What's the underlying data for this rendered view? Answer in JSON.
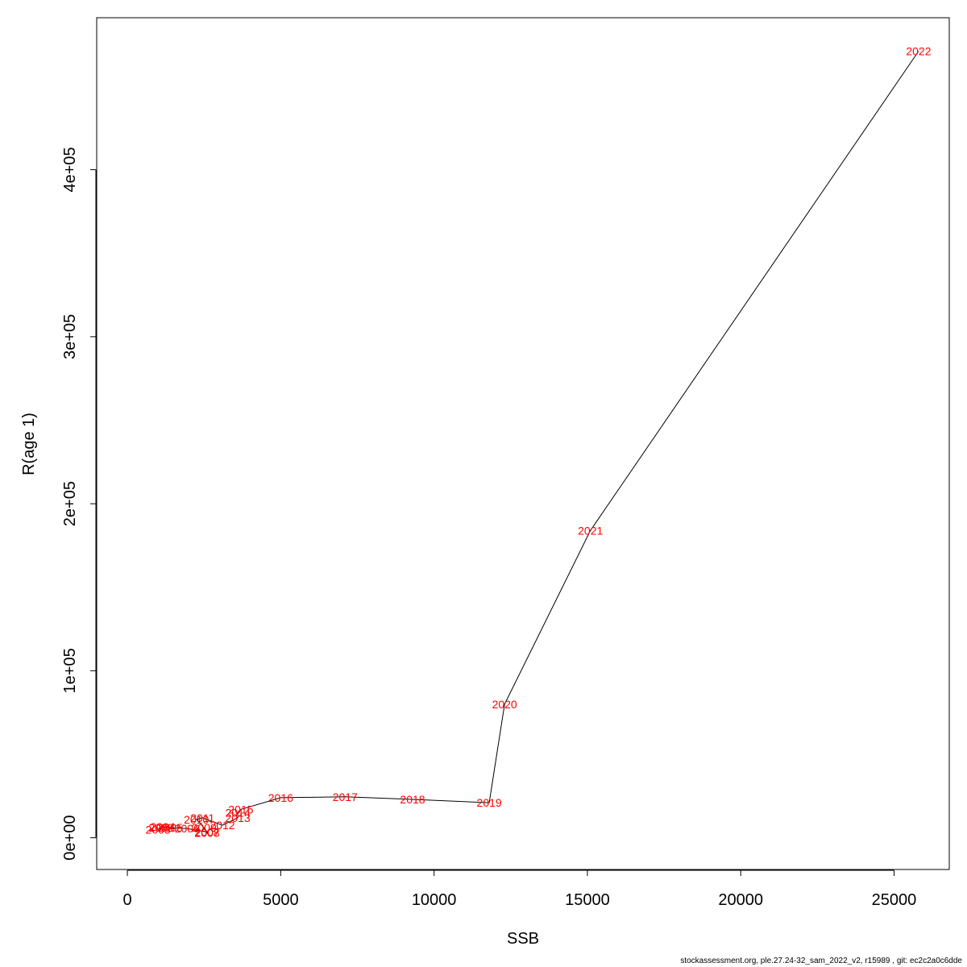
{
  "chart_data": {
    "type": "line",
    "xlabel": "SSB",
    "ylabel": "R(age 1)",
    "xlim": [
      -1000,
      26800
    ],
    "ylim": [
      -19000,
      491000
    ],
    "x_ticks": [
      0,
      5000,
      10000,
      15000,
      20000,
      25000
    ],
    "x_tick_labels": [
      "0",
      "5000",
      "10000",
      "15000",
      "20000",
      "25000"
    ],
    "y_ticks": [
      0,
      100000,
      200000,
      300000,
      400000
    ],
    "y_tick_labels": [
      "0e+00",
      "1e+05",
      "2e+05",
      "3e+05",
      "4e+05"
    ],
    "grid": false,
    "line_color": "#000000",
    "label_color": "#ff0000",
    "points": [
      {
        "year": "2002",
        "x": 1100,
        "y": 6000
      },
      {
        "year": "2003",
        "x": 1000,
        "y": 5000
      },
      {
        "year": "2004",
        "x": 1150,
        "y": 6500
      },
      {
        "year": "2005",
        "x": 1400,
        "y": 6000
      },
      {
        "year": "2006",
        "x": 1950,
        "y": 5500
      },
      {
        "year": "2007",
        "x": 2600,
        "y": 3500
      },
      {
        "year": "2008",
        "x": 2600,
        "y": 3000
      },
      {
        "year": "2009",
        "x": 2500,
        "y": 6000
      },
      {
        "year": "2010",
        "x": 2250,
        "y": 11000
      },
      {
        "year": "2011",
        "x": 2450,
        "y": 12000
      },
      {
        "year": "2012",
        "x": 3100,
        "y": 7500
      },
      {
        "year": "2013",
        "x": 3600,
        "y": 12000
      },
      {
        "year": "2014",
        "x": 3600,
        "y": 15000
      },
      {
        "year": "2015",
        "x": 3700,
        "y": 17000
      },
      {
        "year": "2016",
        "x": 5000,
        "y": 24000
      },
      {
        "year": "2017",
        "x": 7100,
        "y": 24500
      },
      {
        "year": "2018",
        "x": 9300,
        "y": 23000
      },
      {
        "year": "2019",
        "x": 11800,
        "y": 21000
      },
      {
        "year": "2020",
        "x": 12300,
        "y": 80000
      },
      {
        "year": "2021",
        "x": 15100,
        "y": 184000
      },
      {
        "year": "2022",
        "x": 25800,
        "y": 471000
      }
    ]
  },
  "footer": "stockassessment.org, ple.27.24-32_sam_2022_v2, r15989 , git: ec2c2a0c6dde"
}
